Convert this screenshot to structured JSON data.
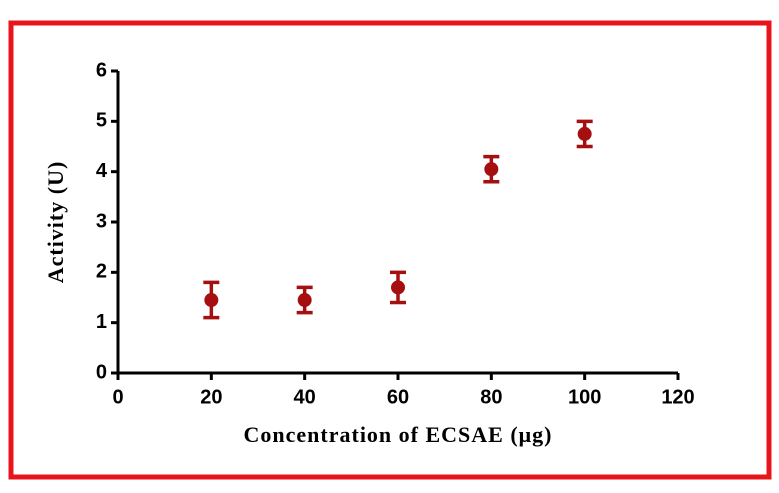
{
  "chart_data": {
    "type": "scatter",
    "x_label": "Concentration  of ECSAE (μg)",
    "y_label": "Activity (U)",
    "x": [
      20,
      40,
      60,
      80,
      100
    ],
    "values": [
      1.45,
      1.45,
      1.7,
      4.05,
      4.75
    ],
    "errors": [
      0.35,
      0.25,
      0.3,
      0.25,
      0.25
    ],
    "color": "#a50f0f",
    "xlim": [
      0,
      120
    ],
    "xticks": [
      0,
      20,
      40,
      60,
      80,
      100,
      120
    ],
    "ylim": [
      0,
      6
    ],
    "yticks": [
      0,
      1,
      2,
      3,
      4,
      5,
      6
    ],
    "grid": false
  }
}
